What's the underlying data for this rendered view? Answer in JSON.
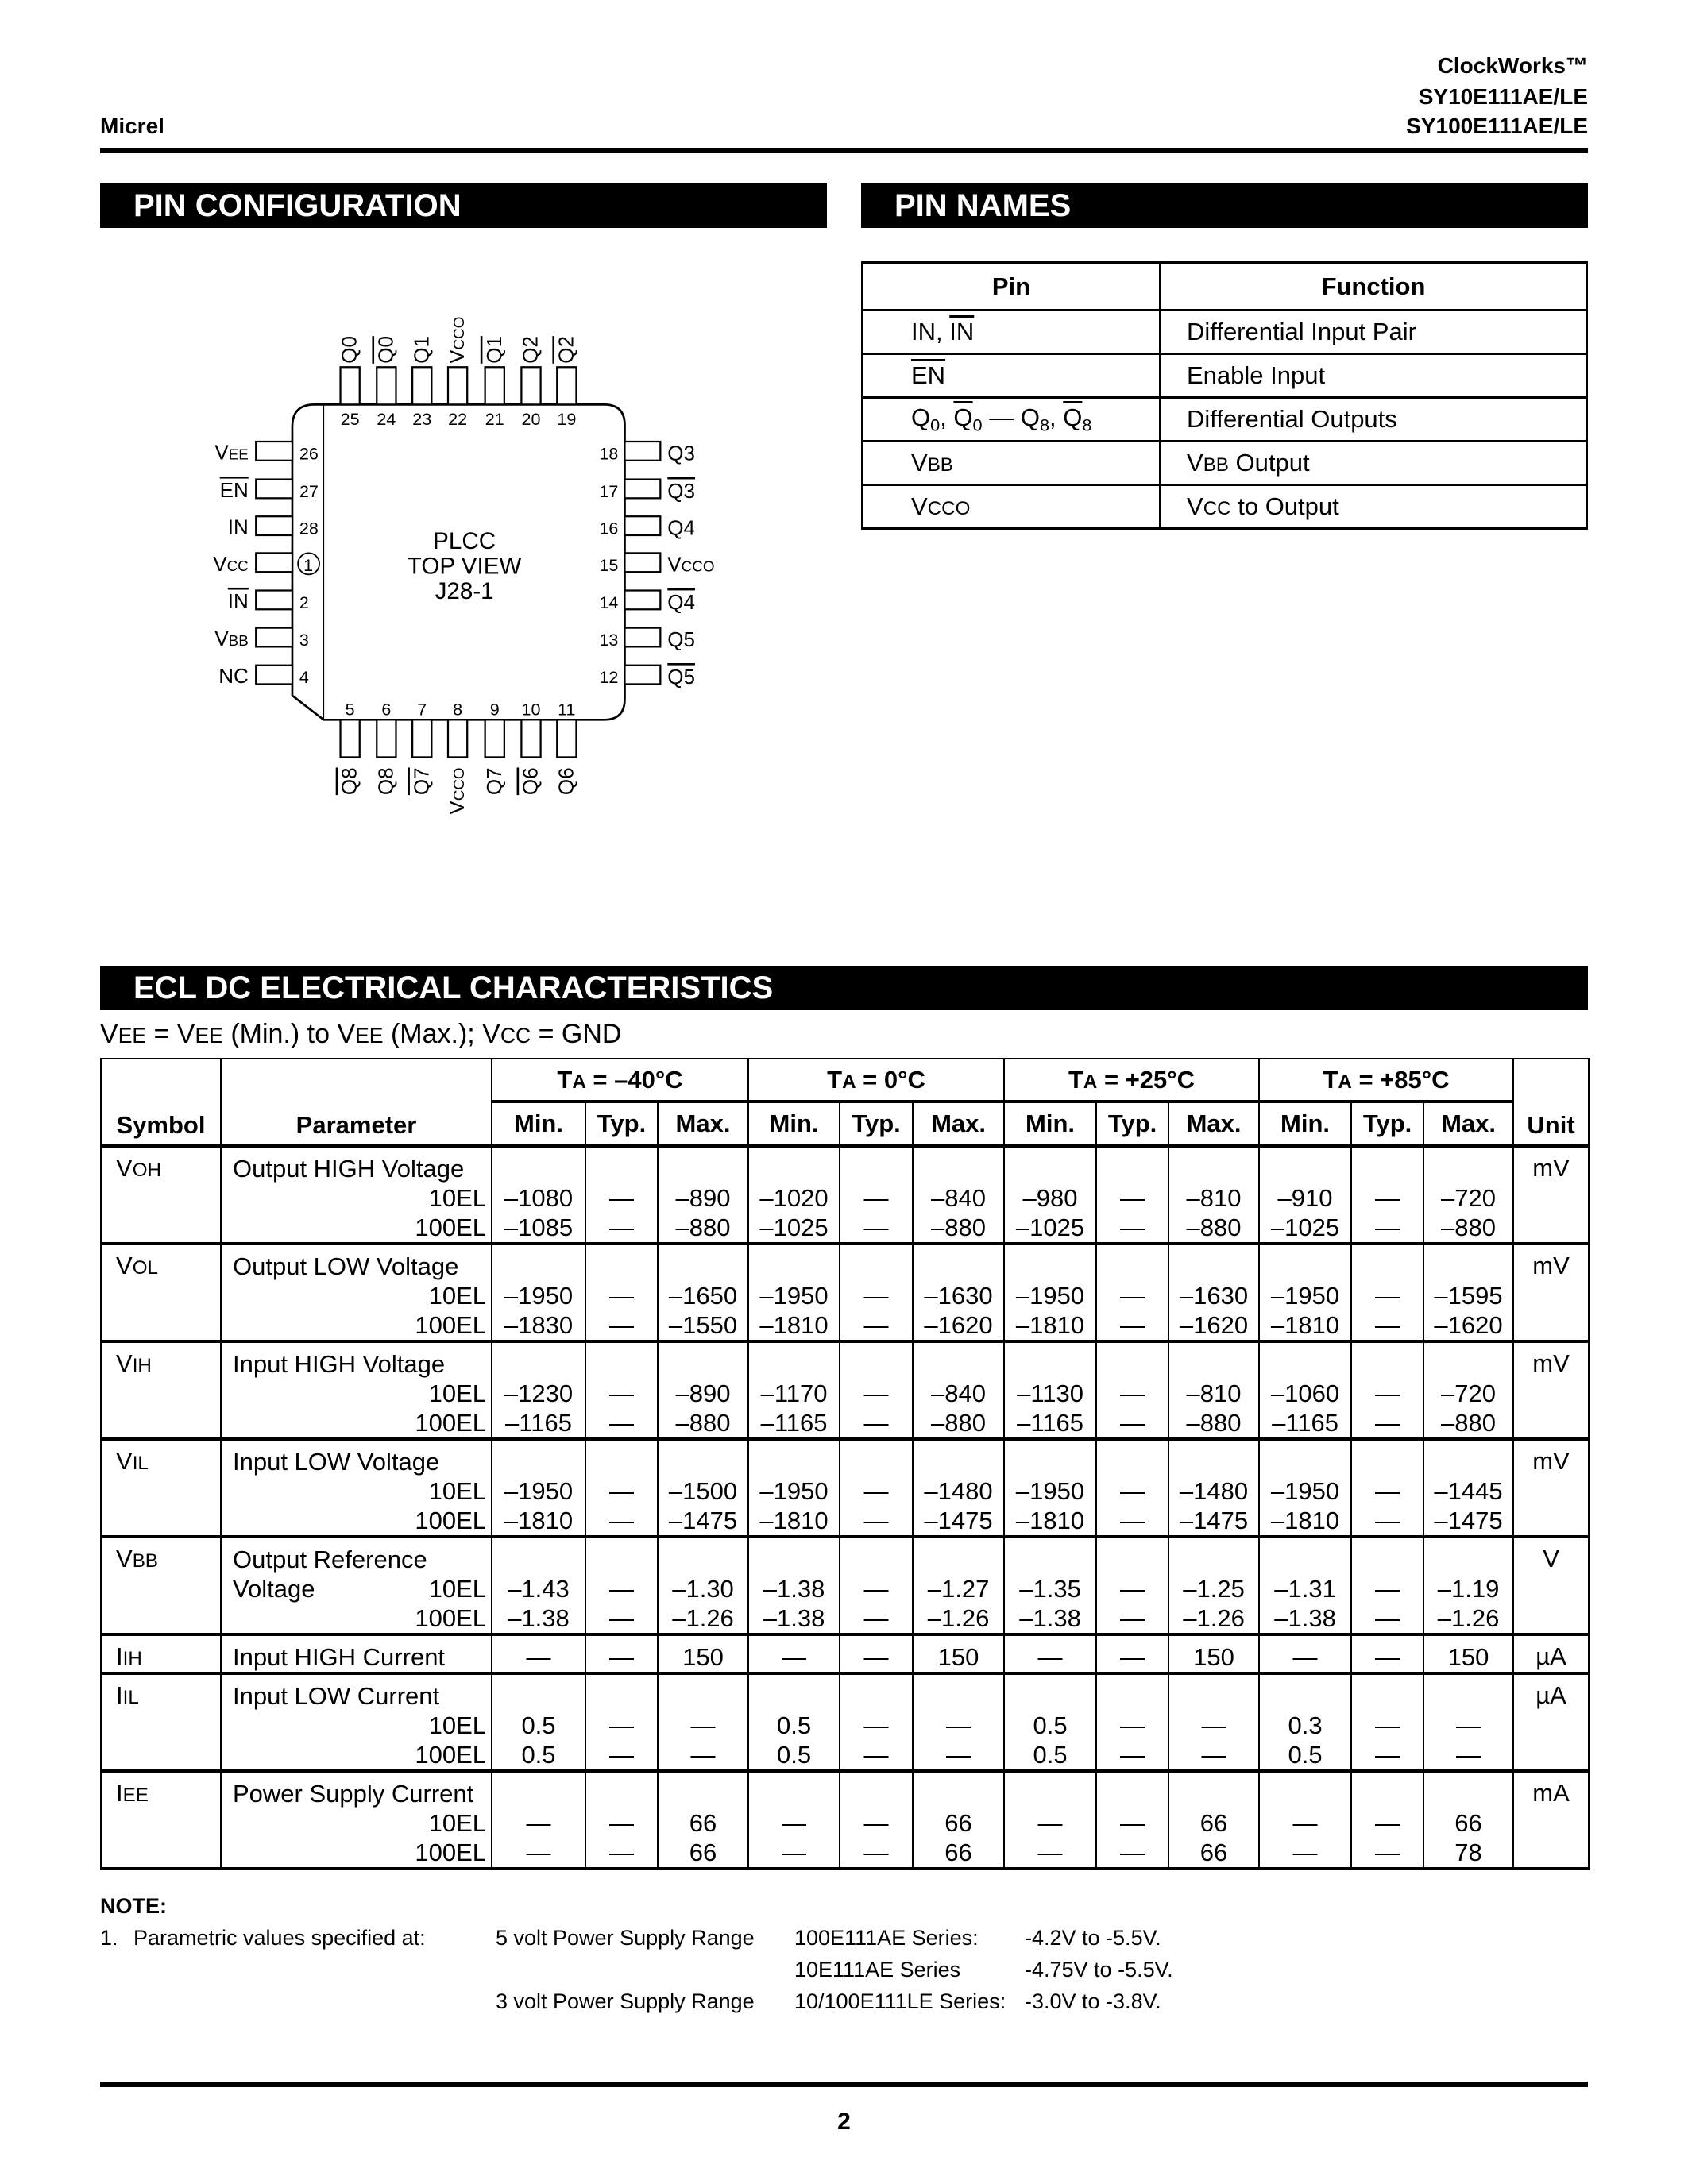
{
  "header": {
    "company": "Micrel",
    "product_family": "ClockWorks™",
    "part1": "SY10E111AE/LE",
    "part2": "SY100E111AE/LE"
  },
  "sections": {
    "pin_config": "PIN CONFIGURATION",
    "pin_names": "PIN NAMES",
    "ecl_dc": "ECL DC ELECTRICAL CHARACTERISTICS"
  },
  "diagram": {
    "center_lines": [
      "PLCC",
      "TOP VIEW",
      "J28-1"
    ],
    "pin1_number": "1",
    "top": [
      {
        "n": "25",
        "l": [
          {
            "t": "Q0"
          }
        ]
      },
      {
        "n": "24",
        "l": [
          {
            "t": "Q0",
            "o": 1
          }
        ]
      },
      {
        "n": "23",
        "l": [
          {
            "t": "Q1"
          }
        ]
      },
      {
        "n": "22",
        "l": [
          {
            "t": "V"
          },
          {
            "t": "CCO",
            "s": "sm"
          }
        ]
      },
      {
        "n": "21",
        "l": [
          {
            "t": "Q1",
            "o": 1
          }
        ]
      },
      {
        "n": "20",
        "l": [
          {
            "t": "Q2"
          }
        ]
      },
      {
        "n": "19",
        "l": [
          {
            "t": "Q2",
            "o": 1
          }
        ]
      }
    ],
    "left": [
      {
        "n": "26",
        "l": [
          {
            "t": "V"
          },
          {
            "t": "EE",
            "s": "sm"
          }
        ]
      },
      {
        "n": "27",
        "l": [
          {
            "t": "EN",
            "o": 1
          }
        ]
      },
      {
        "n": "28",
        "l": [
          {
            "t": "IN"
          }
        ]
      },
      {
        "n": "1",
        "l": [
          {
            "t": "V"
          },
          {
            "t": "CC",
            "s": "sm"
          }
        ]
      },
      {
        "n": "2",
        "l": [
          {
            "t": "IN",
            "o": 1
          }
        ]
      },
      {
        "n": "3",
        "l": [
          {
            "t": "V"
          },
          {
            "t": "BB",
            "s": "sm"
          }
        ]
      },
      {
        "n": "4",
        "l": [
          {
            "t": "NC"
          }
        ]
      }
    ],
    "right": [
      {
        "n": "18",
        "l": [
          {
            "t": "Q3"
          }
        ]
      },
      {
        "n": "17",
        "l": [
          {
            "t": "Q3",
            "o": 1
          }
        ]
      },
      {
        "n": "16",
        "l": [
          {
            "t": "Q4"
          }
        ]
      },
      {
        "n": "15",
        "l": [
          {
            "t": "V"
          },
          {
            "t": "CCO",
            "s": "sm"
          }
        ]
      },
      {
        "n": "14",
        "l": [
          {
            "t": "Q4",
            "o": 1
          }
        ]
      },
      {
        "n": "13",
        "l": [
          {
            "t": "Q5"
          }
        ]
      },
      {
        "n": "12",
        "l": [
          {
            "t": "Q5",
            "o": 1
          }
        ]
      }
    ],
    "bottom": [
      {
        "n": "5",
        "l": [
          {
            "t": "Q8",
            "o": 1
          }
        ]
      },
      {
        "n": "6",
        "l": [
          {
            "t": "Q8"
          }
        ]
      },
      {
        "n": "7",
        "l": [
          {
            "t": "Q7",
            "o": 1
          }
        ]
      },
      {
        "n": "8",
        "l": [
          {
            "t": "V"
          },
          {
            "t": "CCO",
            "s": "sm"
          }
        ]
      },
      {
        "n": "9",
        "l": [
          {
            "t": "Q7"
          }
        ]
      },
      {
        "n": "10",
        "l": [
          {
            "t": "Q6",
            "o": 1
          }
        ]
      },
      {
        "n": "11",
        "l": [
          {
            "t": "Q6"
          }
        ]
      }
    ]
  },
  "pin_names": {
    "headers": [
      "Pin",
      "Function"
    ],
    "rows": [
      {
        "pin": [
          {
            "t": "IN, "
          },
          {
            "t": "IN",
            "o": 1
          }
        ],
        "function": [
          {
            "t": "Differential Input Pair"
          }
        ]
      },
      {
        "pin": [
          {
            "t": "EN",
            "o": 1
          }
        ],
        "function": [
          {
            "t": "Enable Input"
          }
        ]
      },
      {
        "pin": [
          {
            "t": "Q"
          },
          {
            "t": "0",
            "s": "sub"
          },
          {
            "t": ", "
          },
          {
            "t": "Q",
            "o": 1
          },
          {
            "t": "0",
            "s": "sub"
          },
          {
            "t": " — Q"
          },
          {
            "t": "8",
            "s": "sub"
          },
          {
            "t": ", "
          },
          {
            "t": "Q",
            "o": 1
          },
          {
            "t": "8",
            "s": "sub"
          }
        ],
        "function": [
          {
            "t": "Differential Outputs"
          }
        ]
      },
      {
        "pin": [
          {
            "t": "V"
          },
          {
            "t": "BB",
            "s": "sm"
          }
        ],
        "function": [
          {
            "t": "V"
          },
          {
            "t": "BB",
            "s": "sm"
          },
          {
            "t": " Output"
          }
        ]
      },
      {
        "pin": [
          {
            "t": "V"
          },
          {
            "t": "CCO",
            "s": "sm"
          }
        ],
        "function": [
          {
            "t": "V"
          },
          {
            "t": "CC",
            "s": "sm"
          },
          {
            "t": " to Output"
          }
        ]
      }
    ]
  },
  "ecl": {
    "conditions": [
      {
        "t": "V"
      },
      {
        "t": "EE",
        "s": "sm"
      },
      {
        "t": " = V"
      },
      {
        "t": "EE",
        "s": "sm"
      },
      {
        "t": " (Min.) to V"
      },
      {
        "t": "EE",
        "s": "sm"
      },
      {
        "t": " (Max.); V"
      },
      {
        "t": "CC",
        "s": "sm"
      },
      {
        "t": " = GND"
      }
    ],
    "col_symbol": "Symbol",
    "col_parameter": "Parameter",
    "col_unit": "Unit",
    "temps": [
      [
        {
          "t": "T"
        },
        {
          "t": "A",
          "s": "sm"
        },
        {
          "t": " = –40°C"
        }
      ],
      [
        {
          "t": "T"
        },
        {
          "t": "A",
          "s": "sm"
        },
        {
          "t": " = 0°C"
        }
      ],
      [
        {
          "t": "T"
        },
        {
          "t": "A",
          "s": "sm"
        },
        {
          "t": " = +25°C"
        }
      ],
      [
        {
          "t": "T"
        },
        {
          "t": "A",
          "s": "sm"
        },
        {
          "t": " = +85°C"
        }
      ]
    ],
    "subcols": [
      "Min.",
      "Typ.",
      "Max."
    ],
    "rows": [
      {
        "sym": "V",
        "sub": "OH",
        "param": [
          "Output HIGH Voltage"
        ],
        "unit": "mV",
        "variants": [
          {
            "label": "10EL",
            "values": [
              "–1080",
              "—",
              "–890",
              "–1020",
              "—",
              "–840",
              "–980",
              "—",
              "–810",
              "–910",
              "—",
              "–720"
            ]
          },
          {
            "label": "100EL",
            "values": [
              "–1085",
              "—",
              "–880",
              "–1025",
              "—",
              "–880",
              "–1025",
              "—",
              "–880",
              "–1025",
              "—",
              "–880"
            ]
          }
        ]
      },
      {
        "sym": "V",
        "sub": "OL",
        "param": [
          "Output LOW Voltage"
        ],
        "unit": "mV",
        "variants": [
          {
            "label": "10EL",
            "values": [
              "–1950",
              "—",
              "–1650",
              "–1950",
              "—",
              "–1630",
              "–1950",
              "—",
              "–1630",
              "–1950",
              "—",
              "–1595"
            ]
          },
          {
            "label": "100EL",
            "values": [
              "–1830",
              "—",
              "–1550",
              "–1810",
              "—",
              "–1620",
              "–1810",
              "—",
              "–1620",
              "–1810",
              "—",
              "–1620"
            ]
          }
        ]
      },
      {
        "sym": "V",
        "sub": "IH",
        "param": [
          "Input HIGH Voltage"
        ],
        "unit": "mV",
        "variants": [
          {
            "label": "10EL",
            "values": [
              "–1230",
              "—",
              "–890",
              "–1170",
              "—",
              "–840",
              "–1130",
              "—",
              "–810",
              "–1060",
              "—",
              "–720"
            ]
          },
          {
            "label": "100EL",
            "values": [
              "–1165",
              "—",
              "–880",
              "–1165",
              "—",
              "–880",
              "–1165",
              "—",
              "–880",
              "–1165",
              "—",
              "–880"
            ]
          }
        ]
      },
      {
        "sym": "V",
        "sub": "IL",
        "param": [
          "Input LOW Voltage"
        ],
        "unit": "mV",
        "variants": [
          {
            "label": "10EL",
            "values": [
              "–1950",
              "—",
              "–1500",
              "–1950",
              "—",
              "–1480",
              "–1950",
              "—",
              "–1480",
              "–1950",
              "—",
              "–1445"
            ]
          },
          {
            "label": "100EL",
            "values": [
              "–1810",
              "—",
              "–1475",
              "–1810",
              "—",
              "–1475",
              "–1810",
              "—",
              "–1475",
              "–1810",
              "—",
              "–1475"
            ]
          }
        ]
      },
      {
        "sym": "V",
        "sub": "BB",
        "param": [
          "Output Reference",
          "Voltage"
        ],
        "unit": "V",
        "variants": [
          {
            "label": "10EL",
            "values": [
              "–1.43",
              "—",
              "–1.30",
              "–1.38",
              "—",
              "–1.27",
              "–1.35",
              "—",
              "–1.25",
              "–1.31",
              "—",
              "–1.19"
            ]
          },
          {
            "label": "100EL",
            "values": [
              "–1.38",
              "—",
              "–1.26",
              "–1.38",
              "—",
              "–1.26",
              "–1.38",
              "—",
              "–1.26",
              "–1.38",
              "—",
              "–1.26"
            ]
          }
        ]
      },
      {
        "sym": "I",
        "sub": "IH",
        "param": [
          "Input HIGH Current"
        ],
        "unit": "µA",
        "single": [
          "—",
          "—",
          "150",
          "—",
          "—",
          "150",
          "—",
          "—",
          "150",
          "—",
          "—",
          "150"
        ]
      },
      {
        "sym": "I",
        "sub": "IL",
        "param": [
          "Input LOW Current"
        ],
        "unit": "µA",
        "variants": [
          {
            "label": "10EL",
            "values": [
              "0.5",
              "—",
              "—",
              "0.5",
              "—",
              "—",
              "0.5",
              "—",
              "—",
              "0.3",
              "—",
              "—"
            ]
          },
          {
            "label": "100EL",
            "values": [
              "0.5",
              "—",
              "—",
              "0.5",
              "—",
              "—",
              "0.5",
              "—",
              "—",
              "0.5",
              "—",
              "—"
            ]
          }
        ]
      },
      {
        "sym": "I",
        "sub": "EE",
        "param": [
          "Power Supply Current"
        ],
        "unit": "mA",
        "variants": [
          {
            "label": "10EL",
            "values": [
              "—",
              "—",
              "66",
              "—",
              "—",
              "66",
              "—",
              "—",
              "66",
              "—",
              "—",
              "66"
            ]
          },
          {
            "label": "100EL",
            "values": [
              "—",
              "—",
              "66",
              "—",
              "—",
              "66",
              "—",
              "—",
              "66",
              "—",
              "—",
              "78"
            ]
          }
        ]
      }
    ]
  },
  "note": {
    "title": "NOTE:",
    "number": "1.",
    "text": "Parametric values specified at:",
    "lines": [
      [
        "5 volt Power Supply Range",
        "100E111AE Series:",
        "-4.2V to -5.5V."
      ],
      [
        "",
        "10E111AE Series",
        "-4.75V to -5.5V."
      ],
      [
        "3 volt Power Supply Range",
        "10/100E111LE Series:",
        "-3.0V to -3.8V."
      ]
    ]
  },
  "footer": {
    "page": "2"
  }
}
